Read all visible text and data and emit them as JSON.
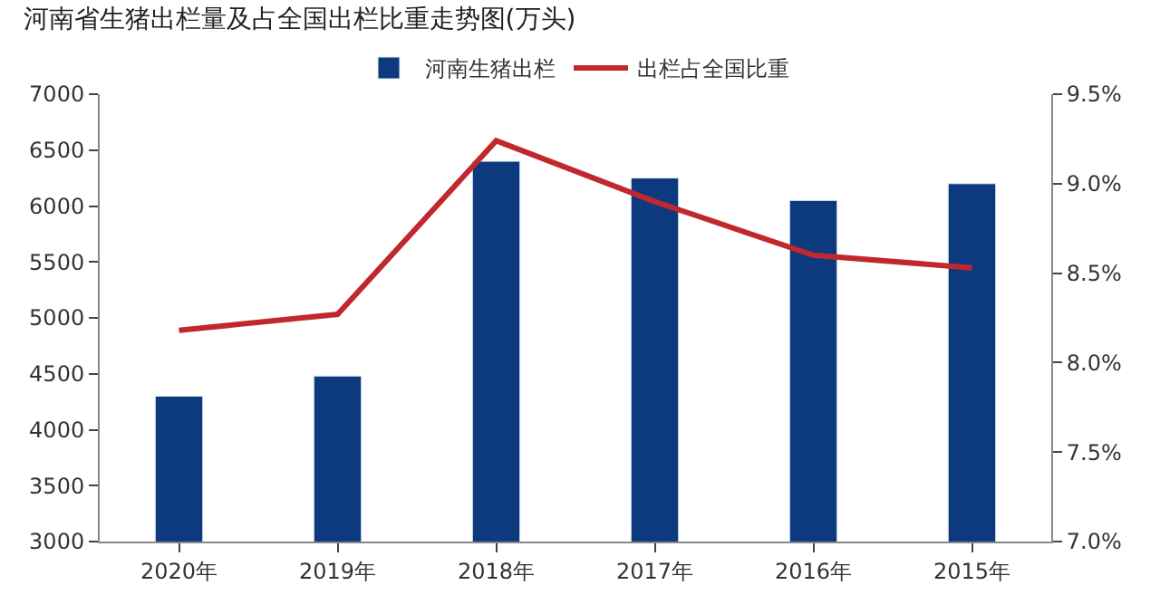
{
  "chart_data": {
    "type": "bar",
    "title": "河南省生猪出栏量及占全国出栏比重走势图(万头)",
    "categories": [
      "2020年",
      "2019年",
      "2018年",
      "2017年",
      "2016年",
      "2015年"
    ],
    "series": [
      {
        "name": "河南生猪出栏",
        "color": "#0d3a7e",
        "values": [
          4300,
          4480,
          6400,
          6250,
          6050,
          6200
        ]
      },
      {
        "name": "出栏占全国比重",
        "type": "line",
        "axis": "y2",
        "color": "#c0282d",
        "values": [
          8.18,
          8.27,
          9.24,
          8.9,
          8.6,
          8.53
        ]
      }
    ],
    "ylim": [
      3000,
      7000
    ],
    "yticks": [
      3000,
      3500,
      4000,
      4500,
      5000,
      5500,
      6000,
      6500,
      7000
    ],
    "y2lim": [
      7.0,
      9.5
    ],
    "y2ticks": [
      {
        "value": 7.0,
        "label": "7.0%"
      },
      {
        "value": 7.5,
        "label": "7.5%"
      },
      {
        "value": 8.0,
        "label": "8.0%"
      },
      {
        "value": 8.5,
        "label": "8.5%"
      },
      {
        "value": 9.0,
        "label": "9.0%"
      },
      {
        "value": 9.5,
        "label": "9.5%"
      }
    ],
    "legend": "top",
    "marker": "none",
    "line_style": "solid"
  }
}
